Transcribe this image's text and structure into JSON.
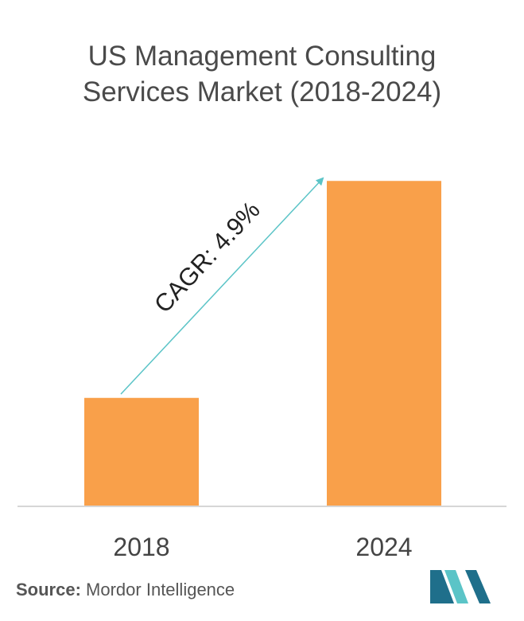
{
  "chart_data": {
    "type": "bar",
    "title": [
      "US Management Consulting",
      "Services Market (2018-2024)"
    ],
    "categories": [
      "2018",
      "2024"
    ],
    "values": [
      1.0,
      3.0
    ],
    "ylim": [
      0,
      3.2
    ],
    "xlabel": "",
    "ylabel": "",
    "grid": false,
    "bar_color": "#f9a04a",
    "annotation": {
      "text": "CAGR: 4.9%",
      "arrow_color": "#5bc4c7"
    }
  },
  "source": {
    "label": "Source:",
    "text": "Mordor Intelligence"
  },
  "colors": {
    "axis": "#d6d6d6",
    "text": "#444444",
    "logo_dark": "#1f6f8b",
    "logo_light": "#5bc4c7"
  }
}
